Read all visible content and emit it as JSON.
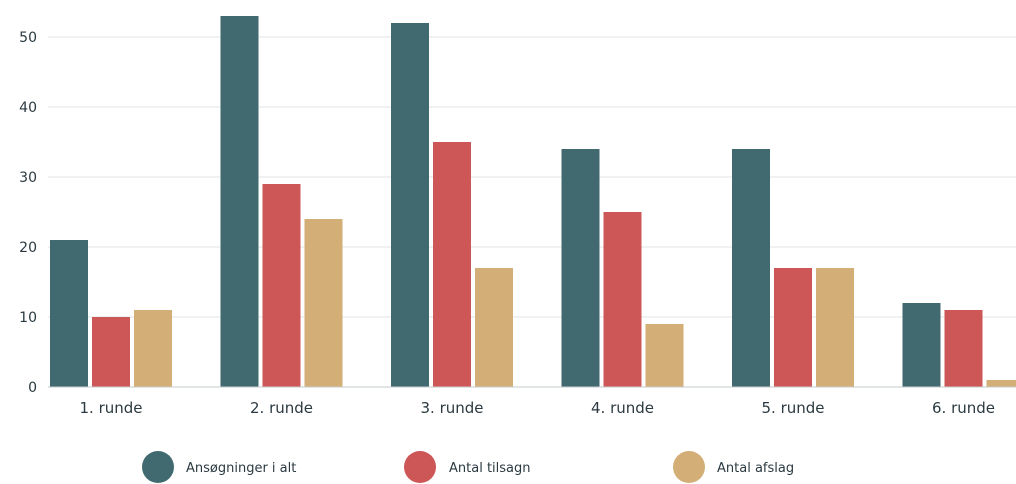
{
  "chart_data": {
    "type": "bar",
    "categories": [
      "1. runde",
      "2. runde",
      "3. runde",
      "4. runde",
      "5. runde",
      "6. runde"
    ],
    "series": [
      {
        "name": "Ansøgninger i alt",
        "color": "#416a70",
        "values": [
          21,
          53,
          52,
          34,
          34,
          12
        ]
      },
      {
        "name": "Antal tilsagn",
        "color": "#cd5656",
        "values": [
          10,
          29,
          35,
          25,
          17,
          11
        ]
      },
      {
        "name": "Antal afslag",
        "color": "#d3ae76",
        "values": [
          11,
          24,
          17,
          9,
          17,
          1
        ]
      }
    ],
    "yticks": [
      0,
      10,
      20,
      30,
      40,
      50
    ],
    "ylim": [
      0,
      53
    ],
    "grid": true,
    "legend_position": "bottom"
  }
}
